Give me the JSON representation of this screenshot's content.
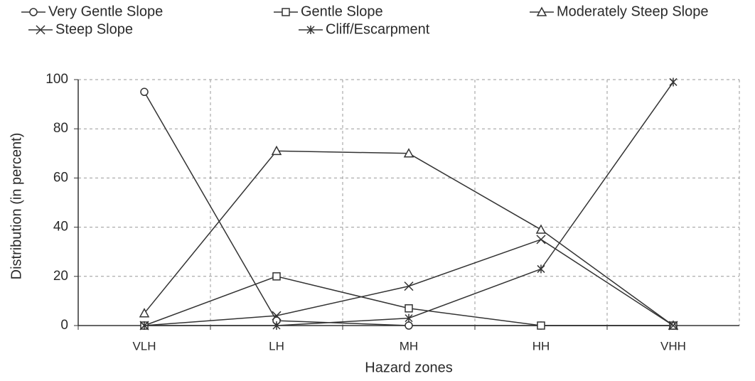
{
  "chart_data": {
    "type": "line",
    "xlabel": "Hazard zones",
    "ylabel": "Distribution (in percent)",
    "categories": [
      "VLH",
      "LH",
      "MH",
      "HH",
      "VHH"
    ],
    "series": [
      {
        "name": "Very Gentle Slope",
        "color": "#333333",
        "marker": "circle",
        "values": [
          95,
          2,
          0,
          0,
          0
        ]
      },
      {
        "name": "Gentle Slope",
        "color": "#333333",
        "marker": "square",
        "values": [
          0,
          20,
          7,
          0,
          0
        ]
      },
      {
        "name": "Moderately Steep Slope",
        "color": "#333333",
        "marker": "triangle",
        "values": [
          5,
          71,
          70,
          39,
          0
        ]
      },
      {
        "name": "Steep Slope",
        "color": "#333333",
        "marker": "x",
        "values": [
          0,
          4,
          16,
          35,
          0
        ]
      },
      {
        "name": "Cliff/Escarpment",
        "color": "#333333",
        "marker": "asterisk",
        "values": [
          0,
          0,
          3,
          23,
          99
        ]
      }
    ],
    "ylim": [
      0,
      100
    ],
    "yticks": [
      0,
      20,
      40,
      60,
      80,
      100
    ],
    "grid": true
  }
}
